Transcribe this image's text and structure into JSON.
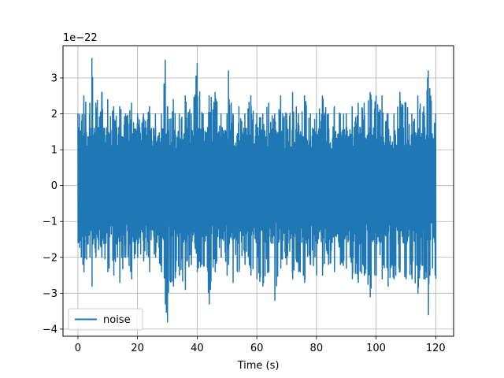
{
  "chart_data": {
    "type": "line",
    "title": "",
    "xlabel": "Time (s)",
    "ylabel": "",
    "xlim": [
      -5,
      126
    ],
    "ylim": [
      -4.2,
      3.9
    ],
    "y_scale_label": "1e−22",
    "grid": true,
    "legend_position": "lower-left",
    "x_ticks": [
      0,
      20,
      40,
      60,
      80,
      100,
      120
    ],
    "x_tick_labels": [
      "0",
      "20",
      "40",
      "60",
      "80",
      "100",
      "120"
    ],
    "y_ticks": [
      -4,
      -3,
      -2,
      -1,
      0,
      1,
      2,
      3
    ],
    "y_tick_labels": [
      "−4",
      "−3",
      "−2",
      "−1",
      "0",
      "1",
      "2",
      "3"
    ],
    "series": [
      {
        "name": "noise",
        "color": "#1f77b4",
        "x_range": [
          0,
          120
        ],
        "envelope": {
          "x": [
            0,
            2,
            4,
            4.7,
            6,
            8,
            10,
            12,
            14,
            16,
            18,
            20,
            22,
            24,
            26,
            28,
            29.3,
            30,
            32,
            34,
            36,
            38,
            40,
            42,
            44,
            46,
            48,
            50,
            50.5,
            52,
            54,
            56,
            58,
            60,
            62,
            64,
            66,
            68,
            70,
            72,
            74,
            76,
            78,
            80,
            82,
            84,
            86,
            88,
            90,
            92,
            94,
            96,
            98,
            100,
            102,
            104,
            106,
            108,
            110,
            112,
            114,
            116,
            117.5,
            118,
            120
          ],
          "max": [
            2.0,
            2.5,
            2.3,
            3.55,
            2.3,
            2.6,
            2.4,
            2.2,
            2.2,
            2.0,
            2.3,
            2.0,
            2.0,
            2.2,
            2.0,
            2.0,
            3.5,
            2.2,
            2.4,
            2.0,
            2.5,
            2.0,
            3.4,
            2.0,
            2.5,
            2.6,
            2.0,
            2.0,
            3.2,
            2.0,
            2.2,
            2.0,
            2.5,
            2.0,
            2.0,
            2.3,
            2.0,
            2.5,
            2.0,
            2.6,
            2.0,
            2.5,
            2.0,
            2.0,
            2.5,
            2.0,
            2.2,
            2.0,
            2.0,
            2.2,
            2.3,
            2.3,
            2.6,
            2.5,
            2.5,
            2.0,
            2.0,
            2.6,
            2.3,
            2.0,
            2.5,
            2.2,
            3.2,
            2.7,
            2.0
          ],
          "min": [
            -1.6,
            -2.4,
            -2.0,
            -2.8,
            -2.0,
            -2.0,
            -2.4,
            -2.5,
            -2.7,
            -2.0,
            -2.6,
            -2.0,
            -2.1,
            -2.4,
            -2.0,
            -2.4,
            -3.3,
            -3.8,
            -2.8,
            -2.5,
            -2.9,
            -2.2,
            -2.4,
            -2.2,
            -3.3,
            -2.4,
            -2.0,
            -2.5,
            -2.2,
            -2.7,
            -2.4,
            -2.2,
            -2.5,
            -2.6,
            -2.8,
            -2.4,
            -3.2,
            -2.3,
            -2.2,
            -2.6,
            -2.4,
            -2.7,
            -2.2,
            -2.5,
            -2.5,
            -2.2,
            -2.4,
            -2.2,
            -2.3,
            -2.6,
            -2.7,
            -2.5,
            -3.1,
            -2.5,
            -2.6,
            -2.8,
            -2.6,
            -2.4,
            -2.6,
            -2.6,
            -3.0,
            -2.6,
            -3.6,
            -2.5,
            -2.6
          ]
        }
      }
    ]
  }
}
